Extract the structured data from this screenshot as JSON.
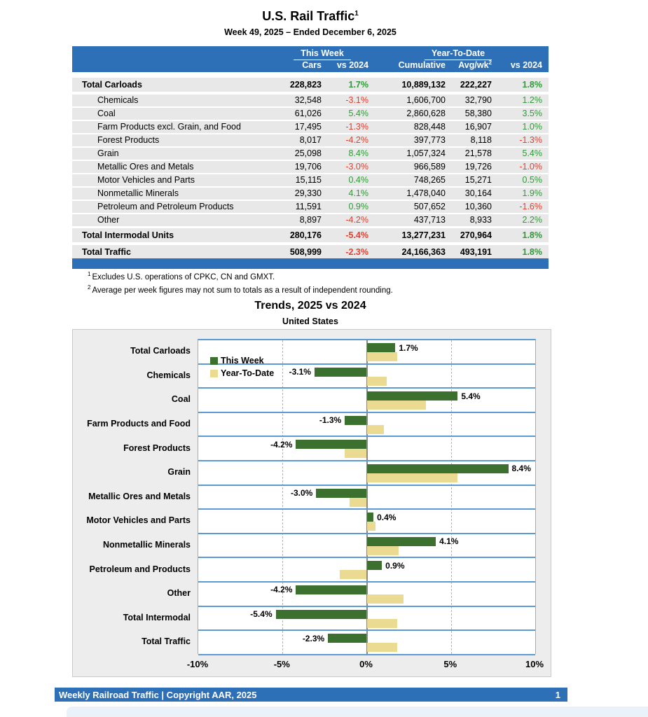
{
  "page": {
    "title": "U.S. Rail Traffic",
    "title_superscript": "1",
    "subtitle": "Week 49, 2025 – Ended December 6, 2025"
  },
  "table": {
    "group_headers": {
      "this_week": "This Week",
      "year_to_date": "Year-To-Date"
    },
    "columns": {
      "cars": "Cars",
      "tw_vs": "vs 2024",
      "cumulative": "Cumulative",
      "avg_wk": "Avg/wk",
      "avg_wk_superscript": "2",
      "ytd_vs": "vs 2024"
    },
    "rows": [
      {
        "label": "Total Carloads",
        "total": true,
        "cars": "228,823",
        "tw_pct": "1.7%",
        "cumulative": "10,889,132",
        "avg_wk": "222,227",
        "ytd_pct": "1.8%"
      },
      {
        "label": "Chemicals",
        "total": false,
        "cars": "32,548",
        "tw_pct": "-3.1%",
        "cumulative": "1,606,700",
        "avg_wk": "32,790",
        "ytd_pct": "1.2%"
      },
      {
        "label": "Coal",
        "total": false,
        "cars": "61,026",
        "tw_pct": "5.4%",
        "cumulative": "2,860,628",
        "avg_wk": "58,380",
        "ytd_pct": "3.5%"
      },
      {
        "label": "Farm Products excl. Grain, and Food",
        "total": false,
        "cars": "17,495",
        "tw_pct": "-1.3%",
        "cumulative": "828,448",
        "avg_wk": "16,907",
        "ytd_pct": "1.0%"
      },
      {
        "label": "Forest Products",
        "total": false,
        "cars": "8,017",
        "tw_pct": "-4.2%",
        "cumulative": "397,773",
        "avg_wk": "8,118",
        "ytd_pct": "-1.3%"
      },
      {
        "label": "Grain",
        "total": false,
        "cars": "25,098",
        "tw_pct": "8.4%",
        "cumulative": "1,057,324",
        "avg_wk": "21,578",
        "ytd_pct": "5.4%"
      },
      {
        "label": "Metallic Ores and Metals",
        "total": false,
        "cars": "19,706",
        "tw_pct": "-3.0%",
        "cumulative": "966,589",
        "avg_wk": "19,726",
        "ytd_pct": "-1.0%"
      },
      {
        "label": "Motor Vehicles and Parts",
        "total": false,
        "cars": "15,115",
        "tw_pct": "0.4%",
        "cumulative": "748,265",
        "avg_wk": "15,271",
        "ytd_pct": "0.5%"
      },
      {
        "label": "Nonmetallic Minerals",
        "total": false,
        "cars": "29,330",
        "tw_pct": "4.1%",
        "cumulative": "1,478,040",
        "avg_wk": "30,164",
        "ytd_pct": "1.9%"
      },
      {
        "label": "Petroleum and Petroleum Products",
        "total": false,
        "cars": "11,591",
        "tw_pct": "0.9%",
        "cumulative": "507,652",
        "avg_wk": "10,360",
        "ytd_pct": "-1.6%"
      },
      {
        "label": "Other",
        "total": false,
        "cars": "8,897",
        "tw_pct": "-4.2%",
        "cumulative": "437,713",
        "avg_wk": "8,933",
        "ytd_pct": "2.2%"
      },
      {
        "label": "Total Intermodal Units",
        "total": true,
        "cars": "280,176",
        "tw_pct": "-5.4%",
        "cumulative": "13,277,231",
        "avg_wk": "270,964",
        "ytd_pct": "1.8%"
      },
      {
        "label": "Total Traffic",
        "total": true,
        "cars": "508,999",
        "tw_pct": "-2.3%",
        "cumulative": "24,166,363",
        "avg_wk": "493,191",
        "ytd_pct": "1.8%"
      }
    ]
  },
  "footnotes": [
    {
      "sup": "1",
      "text": "Excludes U.S. operations of CPKC, CN and GMXT."
    },
    {
      "sup": "2",
      "text": "Average per week figures may not sum to totals as a result of independent rounding."
    }
  ],
  "chart": {
    "title": "Trends, 2025 vs 2024",
    "subtitle": "United States"
  },
  "chart_data": {
    "type": "bar",
    "orientation": "horizontal",
    "title": "Trends, 2025 vs 2024",
    "subtitle": "United States",
    "categories": [
      "Total Carloads",
      "Chemicals",
      "Coal",
      "Farm Products and Food",
      "Forest Products",
      "Grain",
      "Metallic Ores and Metals",
      "Motor Vehicles and Parts",
      "Nonmetallic Minerals",
      "Petroleum and Products",
      "Other",
      "Total Intermodal",
      "Total Traffic"
    ],
    "series": [
      {
        "name": "This Week",
        "color": "#3B702E",
        "values": [
          1.7,
          -3.1,
          5.4,
          -1.3,
          -4.2,
          8.4,
          -3.0,
          0.4,
          4.1,
          0.9,
          -4.2,
          -5.4,
          -2.3
        ],
        "labels": [
          "1.7%",
          "-3.1%",
          "5.4%",
          "-1.3%",
          "-4.2%",
          "8.4%",
          "-3.0%",
          "0.4%",
          "4.1%",
          "0.9%",
          "-4.2%",
          "-5.4%",
          "-2.3%"
        ]
      },
      {
        "name": "Year-To-Date",
        "color": "#EBDA92",
        "values": [
          1.8,
          1.2,
          3.5,
          1.0,
          -1.3,
          5.4,
          -1.0,
          0.5,
          1.9,
          -1.6,
          2.2,
          1.8,
          1.8
        ]
      }
    ],
    "xlim": [
      -10,
      10
    ],
    "x_ticks": [
      {
        "label": "-10%",
        "value": -10
      },
      {
        "label": "-5%",
        "value": -5
      },
      {
        "label": "0%",
        "value": 0
      },
      {
        "label": "5%",
        "value": 5
      },
      {
        "label": "10%",
        "value": 10
      }
    ],
    "gridlines_at": [
      -5,
      5
    ],
    "zero_line_at": 0,
    "legend_position": "inside-top-left",
    "grid": "vertical-dashed"
  },
  "footer": {
    "text": "Weekly Railroad Traffic | Copyright AAR, 2025",
    "page_number": "1"
  },
  "colors": {
    "header_blue": "#2E70B8",
    "row_gray": "#E8E8E8",
    "positive_text": "#2F9A37",
    "negative_text": "#E4402F",
    "bar_green": "#3B702E",
    "bar_tan": "#EBDA92",
    "row_line_blue": "#5B9BD5",
    "chart_background": "#EDEDED"
  }
}
